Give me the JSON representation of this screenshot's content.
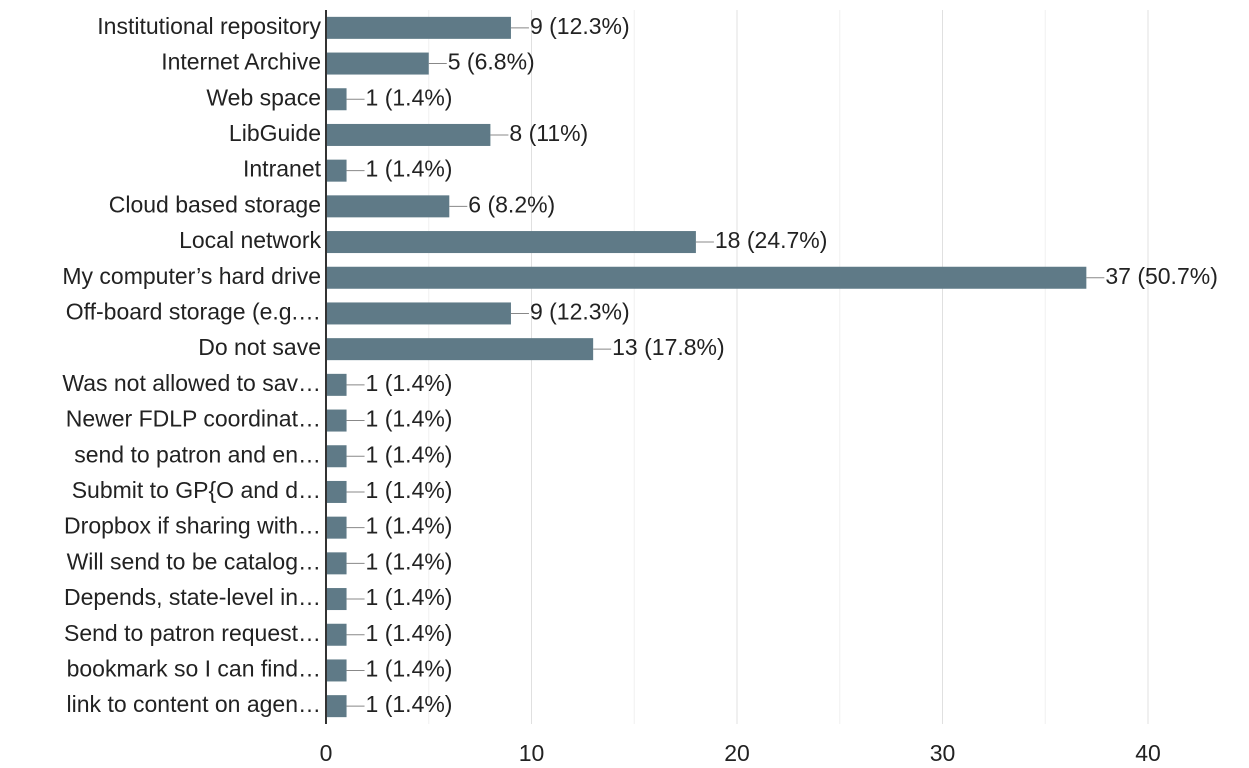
{
  "chart_data": {
    "type": "bar",
    "orientation": "horizontal",
    "categories": [
      "Institutional repository",
      "Internet Archive",
      "Web space",
      "LibGuide",
      "Intranet",
      "Cloud based storage",
      "Local network",
      "My computer’s hard drive",
      "Off-board storage (e.g.…",
      "Do not save",
      "Was not allowed to sav…",
      "Newer FDLP coordinat…",
      "send to patron and en…",
      "Submit to GP{O and d…",
      "Dropbox if sharing with…",
      "Will send to be catalog…",
      "Depends, state-level in…",
      "Send to patron request…",
      "bookmark so I can find…",
      "link to content on agen…"
    ],
    "values": [
      9,
      5,
      1,
      8,
      1,
      6,
      18,
      37,
      9,
      13,
      1,
      1,
      1,
      1,
      1,
      1,
      1,
      1,
      1,
      1
    ],
    "value_labels": [
      "9 (12.3%)",
      "5 (6.8%)",
      "1 (1.4%)",
      "8 (11%)",
      "1 (1.4%)",
      "6 (8.2%)",
      "18 (24.7%)",
      "37 (50.7%)",
      "9 (12.3%)",
      "13 (17.8%)",
      "1 (1.4%)",
      "1 (1.4%)",
      "1 (1.4%)",
      "1 (1.4%)",
      "1 (1.4%)",
      "1 (1.4%)",
      "1 (1.4%)",
      "1 (1.4%)",
      "1 (1.4%)",
      "1 (1.4%)"
    ],
    "color": "#5f7a87",
    "xlim": [
      0,
      40
    ],
    "xticks": [
      0,
      10,
      20,
      30,
      40
    ],
    "minor_xticks": [
      5,
      15,
      25,
      35
    ],
    "grid": true
  }
}
